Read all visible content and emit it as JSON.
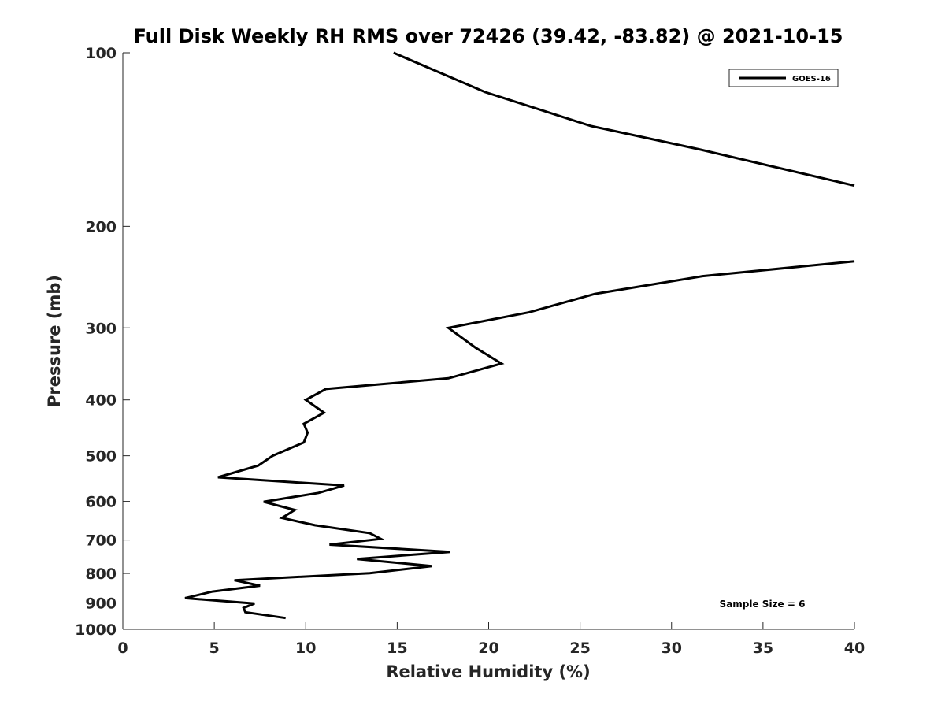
{
  "chart_data": {
    "type": "line",
    "title": "Full Disk Weekly RH RMS over 72426 (39.42, -83.82) @ 2021-10-15",
    "xlabel": "Relative Humidity (%)",
    "ylabel": "Pressure (mb)",
    "xlim": [
      0,
      40
    ],
    "ylim": [
      100,
      1000
    ],
    "yscale": "log",
    "yreversed": true,
    "grid": false,
    "legend_placement": "top-right",
    "x_ticks": [
      0,
      5,
      10,
      15,
      20,
      25,
      30,
      35,
      40
    ],
    "x_tick_labels": [
      "0",
      "5",
      "10",
      "15",
      "20",
      "25",
      "30",
      "35",
      "40"
    ],
    "y_ticks": [
      100,
      200,
      300,
      400,
      500,
      600,
      700,
      800,
      900,
      1000
    ],
    "y_tick_labels": [
      "100",
      "200",
      "300",
      "400",
      "500",
      "600",
      "700",
      "800",
      "900",
      "1000"
    ],
    "series": [
      {
        "name": "GOES-16",
        "color": "#000000",
        "points": [
          [
            14.8,
            100
          ],
          [
            19.8,
            117
          ],
          [
            25.6,
            134
          ],
          [
            31.5,
            147
          ],
          [
            40.0,
            170
          ],
          [
            null,
            null
          ],
          [
            40.0,
            230
          ],
          [
            31.7,
            244
          ],
          [
            25.8,
            262
          ],
          [
            22.2,
            282
          ],
          [
            17.8,
            300
          ],
          [
            19.3,
            325
          ],
          [
            20.7,
            346
          ],
          [
            17.8,
            367
          ],
          [
            11.1,
            383
          ],
          [
            10.0,
            400
          ],
          [
            11.0,
            421
          ],
          [
            9.9,
            440
          ],
          [
            10.1,
            456
          ],
          [
            9.9,
            474
          ],
          [
            8.2,
            500
          ],
          [
            7.4,
            520
          ],
          [
            5.2,
            545
          ],
          [
            12.1,
            563
          ],
          [
            10.7,
            580
          ],
          [
            7.7,
            601
          ],
          [
            9.4,
            621
          ],
          [
            8.7,
            641
          ],
          [
            10.5,
            660
          ],
          [
            13.5,
            681
          ],
          [
            14.1,
            697
          ],
          [
            11.3,
            713
          ],
          [
            17.9,
            734
          ],
          [
            12.8,
            755
          ],
          [
            16.9,
            777
          ],
          [
            13.5,
            799
          ],
          [
            6.1,
            822
          ],
          [
            7.5,
            840
          ],
          [
            4.9,
            860
          ],
          [
            3.4,
            883
          ],
          [
            7.2,
            902
          ],
          [
            6.6,
            918
          ],
          [
            6.7,
            934
          ],
          [
            8.9,
            956
          ]
        ]
      }
    ],
    "annotation": "Sample Size = 6"
  }
}
